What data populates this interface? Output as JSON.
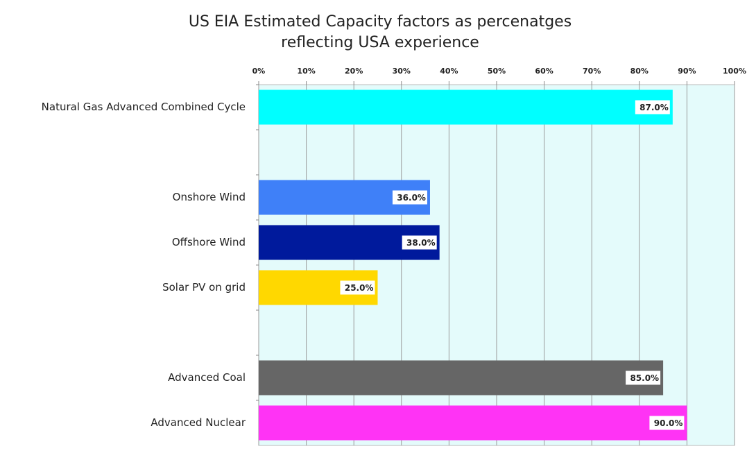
{
  "chart_data": {
    "type": "barh",
    "title": [
      "US EIA Estimated Capacity factors as percenatges",
      "reflecting USA experience"
    ],
    "categories": [
      "Natural Gas Advanced Combined Cycle",
      null,
      "Onshore Wind",
      "Offshore Wind",
      "Solar PV on grid",
      null,
      "Advanced Coal",
      "Advanced Nuclear"
    ],
    "values": [
      87.0,
      null,
      36.0,
      38.0,
      25.0,
      null,
      85.0,
      90.0
    ],
    "value_labels": [
      "87.0%",
      null,
      "36.0%",
      "38.0%",
      "25.0%",
      null,
      "85.0%",
      "90.0%"
    ],
    "colors": [
      "#00ffff",
      null,
      "#3f80f8",
      "#001a9c",
      "#ffd800",
      null,
      "#666666",
      "#ff33f5"
    ],
    "xlim": [
      0,
      100
    ],
    "xticks": [
      {
        "value": 0,
        "label": "0%"
      },
      {
        "value": 10,
        "label": "10%"
      },
      {
        "value": 20,
        "label": "20%"
      },
      {
        "value": 30,
        "label": "30%"
      },
      {
        "value": 40,
        "label": "40%"
      },
      {
        "value": 50,
        "label": "50%"
      },
      {
        "value": 60,
        "label": "60%"
      },
      {
        "value": 70,
        "label": "70%"
      },
      {
        "value": 80,
        "label": "80%"
      },
      {
        "value": 90,
        "label": "90%"
      },
      {
        "value": 100,
        "label": "100%"
      }
    ],
    "grid": true
  }
}
